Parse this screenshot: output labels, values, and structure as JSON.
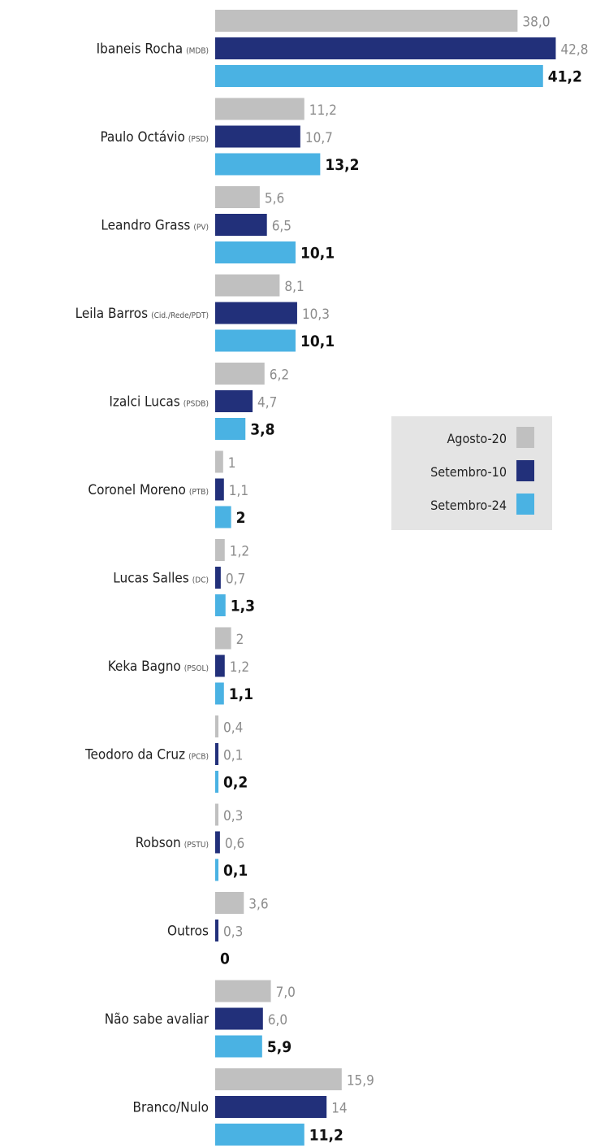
{
  "chart_data": {
    "type": "bar",
    "orientation": "horizontal",
    "grouped": true,
    "categories": [
      {
        "name": "Ibaneis Rocha",
        "party": "(MDB)"
      },
      {
        "name": "Paulo Octávio",
        "party": "(PSD)"
      },
      {
        "name": "Leandro Grass",
        "party": "(PV)"
      },
      {
        "name": "Leila Barros",
        "party": "(Cid./Rede/PDT)"
      },
      {
        "name": "Izalci Lucas",
        "party": "(PSDB)"
      },
      {
        "name": "Coronel Moreno",
        "party": "(PTB)"
      },
      {
        "name": "Lucas Salles",
        "party": "(DC)"
      },
      {
        "name": "Keka Bagno",
        "party": "(PSOL)"
      },
      {
        "name": "Teodoro da Cruz",
        "party": "(PCB)"
      },
      {
        "name": "Robson",
        "party": "(PSTU)"
      },
      {
        "name": "Outros",
        "party": ""
      },
      {
        "name": "Não sabe avaliar",
        "party": ""
      },
      {
        "name": "Branco/Nulo",
        "party": ""
      }
    ],
    "series": [
      {
        "name": "Agosto-20",
        "color": "#c0c0c0",
        "labels": [
          "38,0",
          "11,2",
          "5,6",
          "8,1",
          "6,2",
          "1",
          "1,2",
          "2",
          "0,4",
          "0,3",
          "3,6",
          "7,0",
          "15,9"
        ],
        "values": [
          38.0,
          11.2,
          5.6,
          8.1,
          6.2,
          1,
          1.2,
          2,
          0.4,
          0.3,
          3.6,
          7.0,
          15.9
        ]
      },
      {
        "name": "Setembro-10",
        "color": "#22307a",
        "labels": [
          "42,8",
          "10,7",
          "6,5",
          "10,3",
          "4,7",
          "1,1",
          "0,7",
          "1,2",
          "0,1",
          "0,6",
          "0,3",
          "6,0",
          "14"
        ],
        "values": [
          42.8,
          10.7,
          6.5,
          10.3,
          4.7,
          1.1,
          0.7,
          1.2,
          0.1,
          0.6,
          0.3,
          6.0,
          14
        ]
      },
      {
        "name": "Setembro-24",
        "color": "#4ab2e3",
        "labels": [
          "41,2",
          "13,2",
          "10,1",
          "10,1",
          "3,8",
          "2",
          "1,3",
          "1,1",
          "0,2",
          "0,1",
          "0",
          "5,9",
          "11,2"
        ],
        "values": [
          41.2,
          13.2,
          10.1,
          10.1,
          3.8,
          2,
          1.3,
          1.1,
          0.2,
          0.1,
          0,
          5.9,
          11.2
        ]
      }
    ],
    "highlight_series": "Setembro-24",
    "legend": {
      "placement": "right-middle",
      "entries": [
        "Agosto-20",
        "Setembro-10",
        "Setembro-24"
      ]
    }
  }
}
